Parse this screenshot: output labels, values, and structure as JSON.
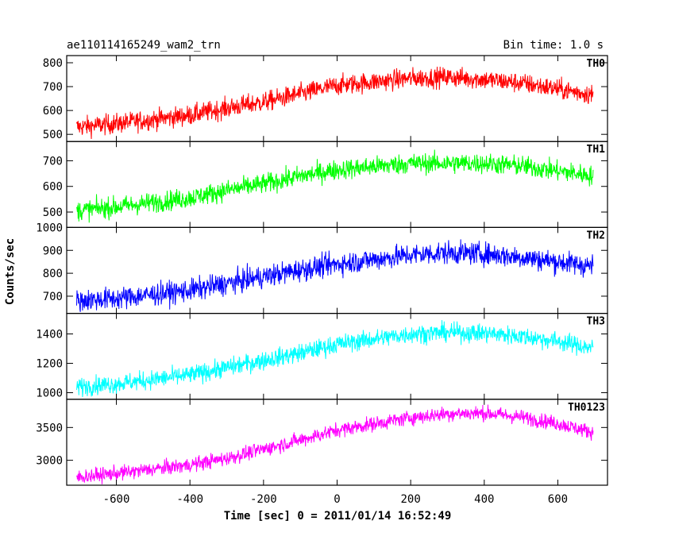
{
  "header": {
    "title": "ae110114165249_wam2_trn",
    "bin_time": "Bin time: 1.0 s"
  },
  "chart_data": {
    "type": "line",
    "xlabel": "Time [sec] 0 = 2011/01/14 16:52:49",
    "ylabel": "Counts/sec",
    "xlim": [
      -735,
      735
    ],
    "x_ticks": [
      -600,
      -400,
      -200,
      0,
      200,
      400,
      600
    ],
    "grid": false,
    "panels": [
      {
        "name": "TH0",
        "color": "#ff0000",
        "ylim": [
          470,
          830
        ],
        "yticks": [
          500,
          600,
          700,
          800
        ],
        "profile": {
          "x": [
            -710,
            -600,
            -400,
            -300,
            -200,
            -100,
            0,
            200,
            300,
            400,
            500,
            600,
            700
          ],
          "y": [
            530,
            545,
            580,
            610,
            635,
            670,
            705,
            735,
            740,
            730,
            715,
            690,
            665
          ]
        },
        "noise": 30
      },
      {
        "name": "TH1",
        "color": "#00ff00",
        "ylim": [
          440,
          775
        ],
        "yticks": [
          500,
          600,
          700
        ],
        "profile": {
          "x": [
            -710,
            -600,
            -400,
            -300,
            -200,
            -100,
            0,
            200,
            300,
            400,
            500,
            600,
            700
          ],
          "y": [
            505,
            520,
            555,
            585,
            610,
            640,
            665,
            690,
            690,
            690,
            680,
            660,
            640
          ]
        },
        "noise": 28
      },
      {
        "name": "TH2",
        "color": "#0000ff",
        "ylim": [
          625,
          1000
        ],
        "yticks": [
          700,
          800,
          900,
          1000
        ],
        "profile": {
          "x": [
            -710,
            -600,
            -400,
            -300,
            -200,
            -100,
            0,
            200,
            300,
            400,
            500,
            600,
            700
          ],
          "y": [
            680,
            690,
            725,
            755,
            785,
            815,
            840,
            880,
            890,
            885,
            870,
            850,
            830
          ]
        },
        "noise": 35
      },
      {
        "name": "TH3",
        "color": "#00ffff",
        "ylim": [
          955,
          1540
        ],
        "yticks": [
          1000,
          1200,
          1400
        ],
        "profile": {
          "x": [
            -710,
            -600,
            -400,
            -300,
            -200,
            -100,
            0,
            200,
            300,
            400,
            500,
            600,
            700
          ],
          "y": [
            1040,
            1060,
            1120,
            1170,
            1220,
            1270,
            1330,
            1400,
            1410,
            1405,
            1385,
            1350,
            1300
          ]
        },
        "noise": 45
      },
      {
        "name": "TH0123",
        "color": "#ff00ff",
        "ylim": [
          2620,
          3930
        ],
        "yticks": [
          3000,
          3500
        ],
        "profile": {
          "x": [
            -710,
            -600,
            -400,
            -300,
            -200,
            -100,
            0,
            200,
            300,
            400,
            500,
            600,
            700
          ],
          "y": [
            2740,
            2800,
            2930,
            3030,
            3170,
            3310,
            3460,
            3650,
            3710,
            3720,
            3660,
            3560,
            3420
          ]
        },
        "noise": 80
      }
    ]
  }
}
